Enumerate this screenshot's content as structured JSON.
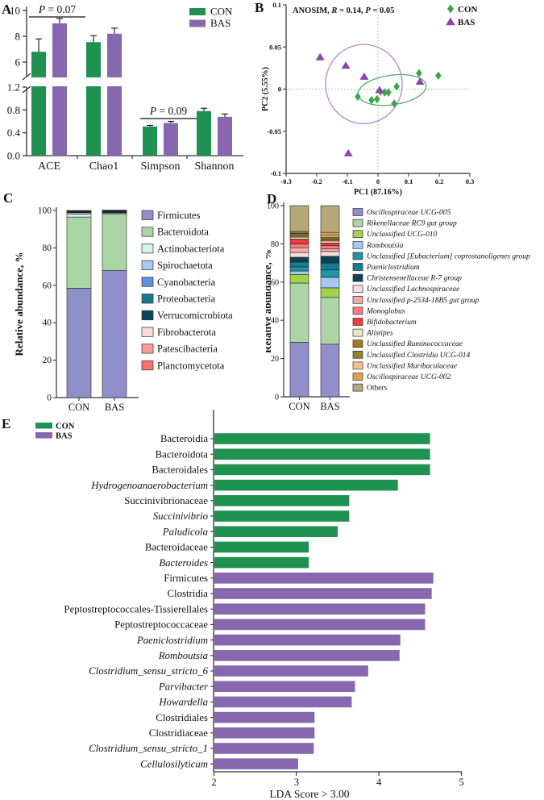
{
  "figure": {
    "panel_labels": {
      "A": "A",
      "B": "B",
      "C": "C",
      "D": "D",
      "E": "E"
    }
  },
  "colors": {
    "con_green": "#1f9150",
    "bas_purple": "#8767ae",
    "scatter_green": "#3ca54b",
    "scatter_purple": "#8e44a8",
    "ellipse_green": "#55a960",
    "ellipse_purple": "#b981cf",
    "axis": "#333333"
  },
  "chart_data": [
    {
      "panel": "A",
      "type": "bar",
      "categories": [
        "ACE",
        "Chao1",
        "Simpson",
        "Shannon"
      ],
      "series": [
        {
          "name": "CON",
          "color": "#1f9150",
          "values": [
            6.8,
            7.55,
            0.51,
            0.78
          ],
          "errors": [
            1.0,
            0.5,
            0.02,
            0.05
          ]
        },
        {
          "name": "BAS",
          "color": "#8767ae",
          "values": [
            9.0,
            8.2,
            0.57,
            0.68
          ],
          "errors": [
            0.38,
            0.43,
            0.03,
            0.05
          ]
        }
      ],
      "axis_break": {
        "upper_range": [
          4.8,
          10.4
        ],
        "upper_ticks": [
          6,
          8,
          10
        ],
        "lower_range": [
          0,
          1.28
        ],
        "lower_ticks": [
          "0.0",
          "0.4",
          "0.8",
          "1.2"
        ]
      },
      "annotations": [
        {
          "category_index": 0,
          "parts": [
            {
              "t": "P",
              "i": true
            },
            {
              "t": " = 0.07",
              "i": false
            }
          ]
        },
        {
          "category_index": 2,
          "parts": [
            {
              "t": "P",
              "i": true
            },
            {
              "t": " = 0.09",
              "i": false
            }
          ]
        }
      ],
      "legend": [
        {
          "name": "CON",
          "color": "#1f9150"
        },
        {
          "name": "BAS",
          "color": "#8767ae"
        }
      ]
    },
    {
      "panel": "B",
      "type": "scatter",
      "stat_parts": [
        {
          "t": "ANOSIM, ",
          "i": false
        },
        {
          "t": "R",
          "i": true
        },
        {
          "t": " = 0.14, ",
          "i": false
        },
        {
          "t": "P",
          "i": true
        },
        {
          "t": " = 0.05",
          "i": false
        }
      ],
      "xlabel": "PC1 (87.16%)",
      "ylabel": "PC2 (5.55%)",
      "xlim": [
        -0.3,
        0.3
      ],
      "ylim": [
        -0.1,
        0.1
      ],
      "xticks": [
        "-0.3",
        "-0.2",
        "-0.1",
        "0",
        "0.1",
        "0.2",
        "0.3"
      ],
      "yticks": [
        "-0.1",
        "-0.05",
        "0",
        "0.05",
        "0.1"
      ],
      "series": [
        {
          "name": "CON",
          "marker": "diamond",
          "color": "#3ca54b",
          "ellipse": {
            "cx": 0.046,
            "cy": -0.001,
            "rx": 0.112,
            "ry": 0.0176,
            "rotation": -8,
            "color": "#55a960"
          },
          "points": [
            [
              0.134,
              0.019
            ],
            [
              0.197,
              0.016
            ],
            [
              0.061,
              0.003
            ],
            [
              0.034,
              -0.004
            ],
            [
              0.022,
              -0.004
            ],
            [
              0.008,
              -0.003
            ],
            [
              -0.003,
              -0.012
            ],
            [
              -0.021,
              -0.013
            ],
            [
              -0.066,
              -0.009
            ],
            [
              0.053,
              -0.017
            ]
          ]
        },
        {
          "name": "BAS",
          "marker": "triangle",
          "color": "#8e44a8",
          "ellipse": {
            "cx": -0.046,
            "cy": 0.006,
            "rx": 0.125,
            "ry": 0.047,
            "rotation": 0,
            "color": "#b981cf"
          },
          "points": [
            [
              -0.189,
              0.038
            ],
            [
              -0.105,
              0.028
            ],
            [
              -0.045,
              0.015
            ],
            [
              0.005,
              -0.001
            ],
            [
              0.137,
              0.009
            ],
            [
              -0.097,
              -0.076
            ]
          ]
        }
      ]
    },
    {
      "panel": "C",
      "type": "stacked-bar",
      "ylabel": "Relative abundance, %",
      "categories": [
        "CON",
        "BAS"
      ],
      "yticks": [
        0,
        20,
        40,
        60,
        80,
        100
      ],
      "ylim": [
        0,
        100
      ],
      "series": [
        {
          "name": "Firmicutes",
          "color": "#8f90ca",
          "italic": false,
          "values": [
            58.5,
            68.0
          ]
        },
        {
          "name": "Bacteroidota",
          "color": "#abd5a5",
          "italic": false,
          "values": [
            38.0,
            30.2
          ]
        },
        {
          "name": "Actinobacteriota",
          "color": "#d7f4e4",
          "italic": false,
          "values": [
            1.5,
            0.5
          ]
        },
        {
          "name": "Spirochaetota",
          "color": "#a9c9f4",
          "italic": false,
          "values": [
            0.8,
            0.2
          ]
        },
        {
          "name": "Cyanobacteria",
          "color": "#5f8fdf",
          "italic": false,
          "values": [
            0.3,
            0.2
          ]
        },
        {
          "name": "Proteobacteria",
          "color": "#187a8e",
          "italic": false,
          "values": [
            0.3,
            0.2
          ]
        },
        {
          "name": "Verrucomicrobiota",
          "color": "#0b4355",
          "italic": false,
          "values": [
            0.2,
            0.6
          ]
        },
        {
          "name": "Fibrobacterota",
          "color": "#fadcd8",
          "italic": false,
          "values": [
            0.2,
            0.1
          ]
        },
        {
          "name": "Patescibacteria",
          "color": "#f69c96",
          "italic": false,
          "values": [
            0.1,
            0.1
          ]
        },
        {
          "name": "Planctomycetota",
          "color": "#f3726c",
          "italic": false,
          "values": [
            0.1,
            0.1
          ]
        }
      ]
    },
    {
      "panel": "D",
      "type": "stacked-bar",
      "ylabel": "Relative abundance, %",
      "categories": [
        "CON",
        "BAS"
      ],
      "yticks": [
        0,
        20,
        40,
        60,
        80,
        100
      ],
      "ylim": [
        0,
        100
      ],
      "series": [
        {
          "name": "Oscillospiraceae UCG-005",
          "color": "#8f90ca",
          "italic": true,
          "values": [
            28.5,
            27.5
          ]
        },
        {
          "name": "Rikenellaceae RC9 gut group",
          "color": "#abd5a5",
          "italic": true,
          "values": [
            31.0,
            24.5
          ]
        },
        {
          "name": "Unclassified UCG-010",
          "color": "#a4d14c",
          "italic": true,
          "values": [
            4.5,
            5.0
          ]
        },
        {
          "name": "Romboutsia",
          "color": "#a5c7f3",
          "italic": true,
          "values": [
            1.8,
            5.5
          ]
        },
        {
          "name": "Unclassified [Eubacterium] coprostanoligenes group",
          "color": "#1f95a6",
          "italic": true,
          "values": [
            2.2,
            4.0
          ]
        },
        {
          "name": "Paeniclostridium",
          "color": "#187d92",
          "italic": true,
          "values": [
            2.5,
            3.5
          ]
        },
        {
          "name": "Christensenellaceae R-7 group",
          "color": "#0b4355",
          "italic": true,
          "values": [
            2.5,
            3.5
          ]
        },
        {
          "name": "Unclassified Lachnospiraceae",
          "color": "#fadcda",
          "italic": true,
          "values": [
            2.5,
            2.5
          ]
        },
        {
          "name": "Unclassified p-2534-18B5 gut group",
          "color": "#f7a8a8",
          "italic": true,
          "values": [
            2.5,
            1.5
          ]
        },
        {
          "name": "Monoglobus",
          "color": "#f57e7e",
          "italic": true,
          "values": [
            2.0,
            1.5
          ]
        },
        {
          "name": "Bifidobacterium",
          "color": "#ee3d3d",
          "italic": true,
          "values": [
            2.5,
            1.5
          ]
        },
        {
          "name": "Alistipes",
          "color": "#ebe4c9",
          "italic": true,
          "values": [
            1.0,
            1.0
          ]
        },
        {
          "name": "Unclassified Ruminococcaceae",
          "color": "#a5771f",
          "italic": true,
          "values": [
            1.0,
            1.0
          ]
        },
        {
          "name": "Unclassified Clostridia UCG-014",
          "color": "#91802b",
          "italic": true,
          "values": [
            1.0,
            1.0
          ]
        },
        {
          "name": "Unclassified Muribaculaceae",
          "color": "#f6c488",
          "italic": true,
          "values": [
            0.5,
            1.0
          ]
        },
        {
          "name": "Oscillospiraceae UCG-002",
          "color": "#d9a351",
          "italic": true,
          "values": [
            0.5,
            1.5
          ]
        },
        {
          "name": "Others",
          "color": "#b4a977",
          "italic": false,
          "values": [
            13.5,
            14.0
          ]
        }
      ]
    },
    {
      "panel": "E",
      "type": "bar-horizontal",
      "xlabel": "LDA Score > 3.00",
      "xlim": [
        2,
        5
      ],
      "xticks": [
        2,
        3,
        4,
        5
      ],
      "groups": [
        {
          "name": "CON",
          "color": "#1f9150"
        },
        {
          "name": "BAS",
          "color": "#8767ae"
        }
      ],
      "items": [
        {
          "label": "Bacteroidia",
          "italic": false,
          "group": "CON",
          "value": 4.62
        },
        {
          "label": "Bacteroidota",
          "italic": false,
          "group": "CON",
          "value": 4.62
        },
        {
          "label": "Bacteroidales",
          "italic": false,
          "group": "CON",
          "value": 4.62
        },
        {
          "label": "Hydrogenoanaerobacterium",
          "italic": true,
          "group": "CON",
          "value": 4.23
        },
        {
          "label": "Succinivibrionaceae",
          "italic": false,
          "group": "CON",
          "value": 3.64
        },
        {
          "label": "Succinivibrio",
          "italic": true,
          "group": "CON",
          "value": 3.64
        },
        {
          "label": "Paludicola",
          "italic": true,
          "group": "CON",
          "value": 3.5
        },
        {
          "label": "Bacteroidaceae",
          "italic": false,
          "group": "CON",
          "value": 3.15
        },
        {
          "label": "Bacteroides",
          "italic": true,
          "group": "CON",
          "value": 3.15
        },
        {
          "label": "Firmicutes",
          "italic": false,
          "group": "BAS",
          "value": 4.66
        },
        {
          "label": "Clostridia",
          "italic": false,
          "group": "BAS",
          "value": 4.64
        },
        {
          "label": "Peptostreptococcales-Tissierellales",
          "italic": false,
          "group": "BAS",
          "value": 4.56
        },
        {
          "label": "Peptostreptococcaceae",
          "italic": false,
          "group": "BAS",
          "value": 4.56
        },
        {
          "label": "Paeniclostridium",
          "italic": true,
          "group": "BAS",
          "value": 4.26
        },
        {
          "label": "Romboutsia",
          "italic": true,
          "group": "BAS",
          "value": 4.25
        },
        {
          "label": "Clostridium_sensu_stricto_6",
          "italic": true,
          "group": "BAS",
          "value": 3.87
        },
        {
          "label": "Parvibacter",
          "italic": true,
          "group": "BAS",
          "value": 3.71
        },
        {
          "label": "Howardella",
          "italic": true,
          "group": "BAS",
          "value": 3.67
        },
        {
          "label": "Clostridiales",
          "italic": false,
          "group": "BAS",
          "value": 3.22
        },
        {
          "label": "Clostridiaceae",
          "italic": false,
          "group": "BAS",
          "value": 3.22
        },
        {
          "label": "Clostridium_sensu_stricto_1",
          "italic": true,
          "group": "BAS",
          "value": 3.21
        },
        {
          "label": "Cellulosilyticum",
          "italic": true,
          "group": "BAS",
          "value": 3.02
        }
      ]
    }
  ]
}
